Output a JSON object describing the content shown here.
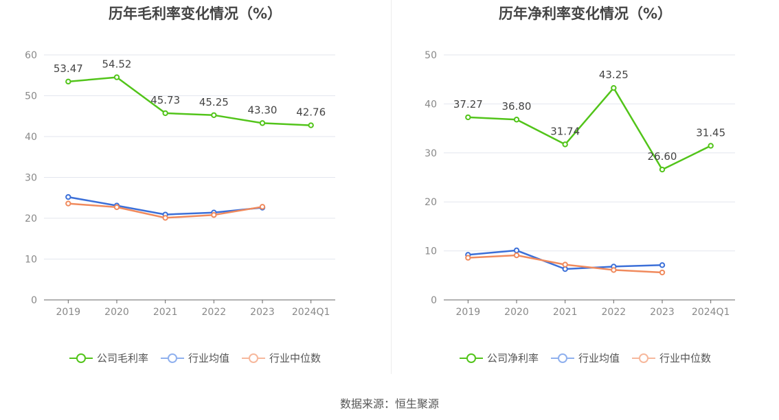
{
  "source_text": "数据来源：恒生聚源",
  "colors": {
    "company": "#52c41a",
    "industry_avg": "#3b6fd8",
    "industry_median": "#f08a5d"
  },
  "chart_data": [
    {
      "type": "line",
      "title": "历年毛利率变化情况（%）",
      "categories": [
        "2019",
        "2020",
        "2021",
        "2022",
        "2023",
        "2024Q1"
      ],
      "ylim": [
        0,
        60
      ],
      "yticks": [
        0,
        10,
        20,
        30,
        40,
        50,
        60
      ],
      "grid": true,
      "legend_position": "bottom",
      "series": [
        {
          "name": "公司毛利率",
          "key": "company",
          "values": [
            53.47,
            54.52,
            45.73,
            45.25,
            43.3,
            42.76
          ],
          "labels": [
            "53.47",
            "54.52",
            "45.73",
            "45.25",
            "43.30",
            "42.76"
          ]
        },
        {
          "name": "行业均值",
          "key": "industry_avg",
          "values": [
            25.2,
            23.1,
            20.9,
            21.4,
            22.6,
            null
          ]
        },
        {
          "name": "行业中位数",
          "key": "industry_median",
          "values": [
            23.6,
            22.7,
            20.1,
            20.8,
            22.8,
            null
          ]
        }
      ]
    },
    {
      "type": "line",
      "title": "历年净利率变化情况（%）",
      "categories": [
        "2019",
        "2020",
        "2021",
        "2022",
        "2023",
        "2024Q1"
      ],
      "ylim": [
        0,
        50
      ],
      "yticks": [
        0,
        10,
        20,
        30,
        40,
        50
      ],
      "grid": true,
      "legend_position": "bottom",
      "series": [
        {
          "name": "公司净利率",
          "key": "company",
          "values": [
            37.27,
            36.8,
            31.74,
            43.25,
            26.6,
            31.45
          ],
          "labels": [
            "37.27",
            "36.80",
            "31.74",
            "43.25",
            "26.60",
            "31.45"
          ]
        },
        {
          "name": "行业均值",
          "key": "industry_avg",
          "values": [
            9.2,
            10.1,
            6.3,
            6.8,
            7.1,
            null
          ]
        },
        {
          "name": "行业中位数",
          "key": "industry_median",
          "values": [
            8.6,
            9.1,
            7.2,
            6.1,
            5.6,
            null
          ]
        }
      ]
    }
  ]
}
